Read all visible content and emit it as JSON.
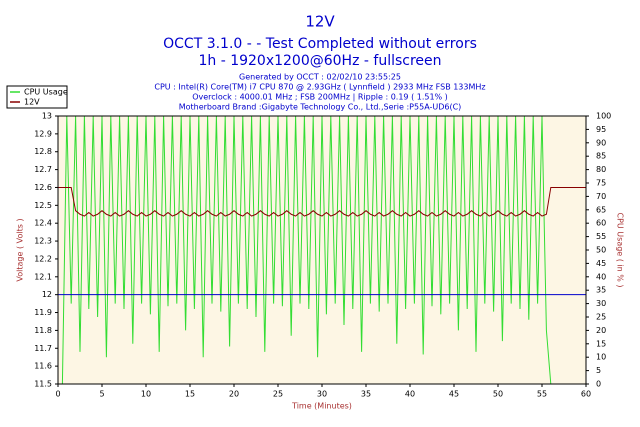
{
  "chart_data": {
    "type": "line",
    "title": "12V",
    "subtitle": "OCCT 3.1.0 -  - Test Completed without errors",
    "subtitle2": "1h - 1920x1200@60Hz - fullscreen",
    "info": [
      "Generated by OCCT : 02/02/10 23:55:25",
      "CPU : Intel(R) Core(TM) i7 CPU 870 @ 2.93GHz ( Lynnfield ) 2933 MHz FSB 133MHz",
      "Overclock : 4000.01 MHz ; FSB 200MHz | Ripple : 0.19 ( 1.51% )",
      "Motherboard Brand :Gigabyte Technology Co., Ltd.,Serie :P55A-UD6(C)"
    ],
    "xlabel": "Time (Minutes)",
    "ylabel": "Voltage ( Volts )",
    "y2label": "CPU Usage ( in % )",
    "x": [
      0,
      0.5,
      1,
      1.5,
      2,
      2.5,
      3,
      3.5,
      4,
      4.5,
      5,
      5.5,
      6,
      6.5,
      7,
      7.5,
      8,
      8.5,
      9,
      9.5,
      10,
      10.5,
      11,
      11.5,
      12,
      12.5,
      13,
      13.5,
      14,
      14.5,
      15,
      15.5,
      16,
      16.5,
      17,
      17.5,
      18,
      18.5,
      19,
      19.5,
      20,
      20.5,
      21,
      21.5,
      22,
      22.5,
      23,
      23.5,
      24,
      24.5,
      25,
      25.5,
      26,
      26.5,
      27,
      27.5,
      28,
      28.5,
      29,
      29.5,
      30,
      30.5,
      31,
      31.5,
      32,
      32.5,
      33,
      33.5,
      34,
      34.5,
      35,
      35.5,
      36,
      36.5,
      37,
      37.5,
      38,
      38.5,
      39,
      39.5,
      40,
      40.5,
      41,
      41.5,
      42,
      42.5,
      43,
      43.5,
      44,
      44.5,
      45,
      45.5,
      46,
      46.5,
      47,
      47.5,
      48,
      48.5,
      49,
      49.5,
      50,
      50.5,
      51,
      51.5,
      52,
      52.5,
      53,
      53.5,
      54,
      54.5,
      55,
      55.5,
      56,
      56.5,
      57,
      57.5,
      58,
      58.5,
      59,
      59.5,
      60
    ],
    "series": [
      {
        "name": "CPU Usage",
        "color": "#33dd33",
        "axis": "y2",
        "values": [
          0,
          0,
          100,
          30,
          100,
          12,
          100,
          28,
          100,
          25,
          100,
          10,
          100,
          30,
          100,
          28,
          100,
          15,
          100,
          30,
          100,
          26,
          100,
          12,
          100,
          29,
          100,
          30,
          100,
          20,
          100,
          28,
          100,
          10,
          100,
          30,
          100,
          27,
          100,
          14,
          100,
          30,
          100,
          28,
          100,
          25,
          100,
          12,
          100,
          30,
          100,
          29,
          100,
          18,
          100,
          30,
          100,
          28,
          100,
          10,
          100,
          26,
          100,
          30,
          100,
          22,
          100,
          28,
          100,
          12,
          100,
          30,
          100,
          27,
          100,
          30,
          100,
          15,
          100,
          28,
          100,
          30,
          100,
          11,
          100,
          29,
          100,
          26,
          100,
          30,
          100,
          20,
          100,
          28,
          100,
          12,
          100,
          30,
          100,
          27,
          100,
          16,
          100,
          30,
          100,
          28,
          100,
          24,
          100,
          30,
          100,
          20,
          0,
          0,
          0,
          0,
          0,
          0,
          0,
          0,
          0
        ]
      },
      {
        "name": "12V",
        "color": "#880000",
        "values": [
          12.6,
          12.6,
          12.6,
          12.6,
          12.47,
          12.45,
          12.44,
          12.46,
          12.44,
          12.45,
          12.47,
          12.45,
          12.44,
          12.46,
          12.44,
          12.45,
          12.47,
          12.45,
          12.44,
          12.46,
          12.44,
          12.45,
          12.47,
          12.45,
          12.44,
          12.46,
          12.44,
          12.45,
          12.47,
          12.45,
          12.44,
          12.46,
          12.44,
          12.45,
          12.47,
          12.45,
          12.44,
          12.46,
          12.44,
          12.45,
          12.47,
          12.45,
          12.44,
          12.46,
          12.44,
          12.45,
          12.47,
          12.45,
          12.44,
          12.46,
          12.44,
          12.45,
          12.47,
          12.45,
          12.44,
          12.46,
          12.44,
          12.45,
          12.47,
          12.45,
          12.44,
          12.46,
          12.44,
          12.45,
          12.47,
          12.45,
          12.44,
          12.46,
          12.44,
          12.45,
          12.47,
          12.45,
          12.44,
          12.46,
          12.44,
          12.45,
          12.47,
          12.45,
          12.44,
          12.46,
          12.44,
          12.45,
          12.47,
          12.45,
          12.44,
          12.46,
          12.44,
          12.45,
          12.47,
          12.45,
          12.44,
          12.46,
          12.44,
          12.45,
          12.47,
          12.45,
          12.44,
          12.46,
          12.44,
          12.45,
          12.47,
          12.45,
          12.44,
          12.46,
          12.44,
          12.45,
          12.47,
          12.45,
          12.44,
          12.46,
          12.44,
          12.45,
          12.6,
          12.6,
          12.6,
          12.6,
          12.6,
          12.6,
          12.6,
          12.6,
          12.6
        ]
      }
    ],
    "reference_line": {
      "value": 12,
      "color": "#0000cc"
    },
    "xlim": [
      0,
      60
    ],
    "xticks": [
      0,
      5,
      10,
      15,
      20,
      25,
      30,
      35,
      40,
      45,
      50,
      55,
      60
    ],
    "ylim": [
      11.5,
      13
    ],
    "yticks": [
      11.5,
      11.6,
      11.7,
      11.8,
      11.9,
      12,
      12.1,
      12.2,
      12.3,
      12.4,
      12.5,
      12.6,
      12.7,
      12.8,
      12.9,
      13
    ],
    "y2lim": [
      0,
      100
    ],
    "y2ticks": [
      0,
      5,
      10,
      15,
      20,
      25,
      30,
      35,
      40,
      45,
      50,
      55,
      60,
      65,
      70,
      75,
      80,
      85,
      90,
      95,
      100
    ],
    "legend": "top-left"
  }
}
